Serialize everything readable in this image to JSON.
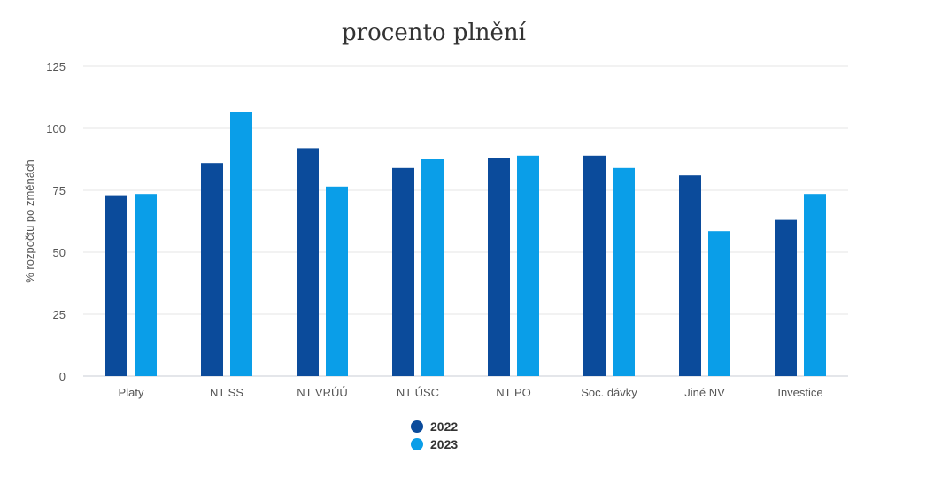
{
  "chart_data": {
    "type": "bar",
    "title": "procento plnění",
    "xlabel": "",
    "ylabel": "% rozpočtu po změnách",
    "ylim": [
      0,
      125
    ],
    "yticks": [
      0,
      25,
      50,
      75,
      100,
      125
    ],
    "grid": true,
    "legend_position": "bottom",
    "categories": [
      "Platy",
      "NT SS",
      "NT VRÚÚ",
      "NT ÚSC",
      "NT PO",
      "Soc. dávky",
      "Jiné NV",
      "Investice"
    ],
    "series": [
      {
        "name": "2022",
        "color": "#0b4b9b",
        "values": [
          73,
          86,
          92,
          84,
          88,
          89,
          81,
          63
        ]
      },
      {
        "name": "2023",
        "color": "#0a9ee8",
        "values": [
          73.5,
          106.5,
          76.5,
          87.5,
          89,
          84,
          58.5,
          73.5
        ]
      }
    ]
  }
}
